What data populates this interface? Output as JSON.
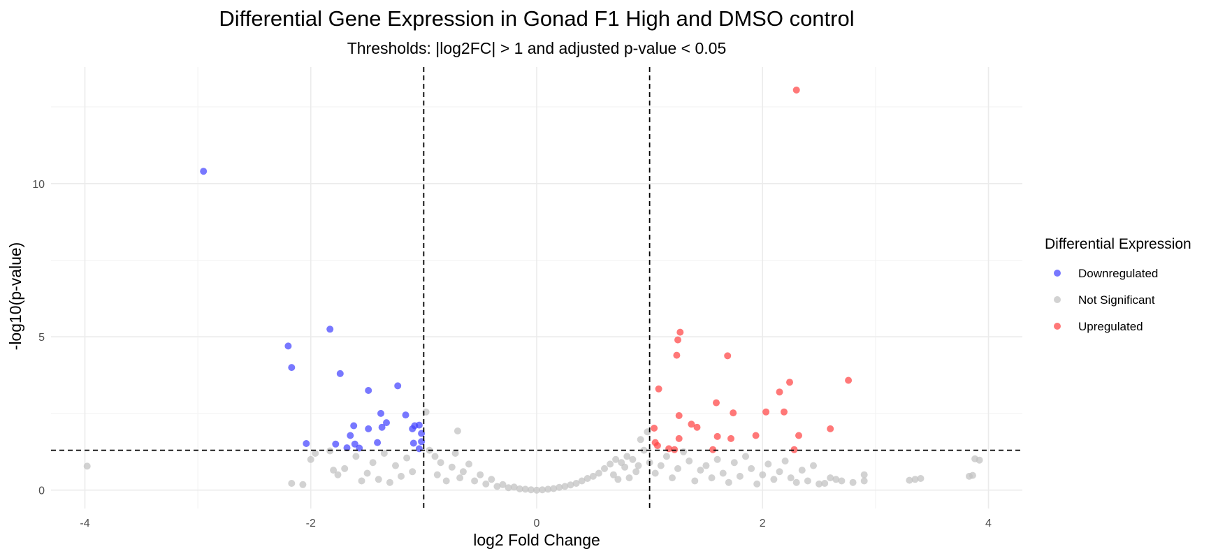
{
  "chart_data": {
    "type": "scatter",
    "title": "Differential Gene Expression in Gonad F1 High and DMSO control",
    "subtitle": "Thresholds: |log2FC| > 1 and adjusted p-value < 0.05",
    "xlabel": "log2 Fold Change",
    "ylabel": "-log10(p-value)",
    "xlim": [
      -4.3,
      4.3
    ],
    "ylim": [
      -0.6,
      13.8
    ],
    "x_ticks": [
      -4,
      -2,
      0,
      2,
      4
    ],
    "x_tick_labels": [
      "-4",
      "-2",
      "0",
      "2",
      "4"
    ],
    "y_ticks": [
      0,
      5,
      10
    ],
    "y_tick_labels": [
      "0",
      "5",
      "10"
    ],
    "grid": true,
    "legend_position": "right",
    "thresholds": {
      "x": [
        -1,
        1
      ],
      "y": 1.3
    },
    "legend": {
      "title": "Differential Expression",
      "items": [
        {
          "label": "Downregulated",
          "color": "#4444ff"
        },
        {
          "label": "Not Significant",
          "color": "#c0c0c0"
        },
        {
          "label": "Upregulated",
          "color": "#ff4444"
        }
      ]
    },
    "series": [
      {
        "name": "Downregulated",
        "color": "#4444ff",
        "points": [
          [
            -2.95,
            10.4
          ],
          [
            -1.83,
            5.25
          ],
          [
            -2.2,
            4.7
          ],
          [
            -2.17,
            4.0
          ],
          [
            -1.74,
            3.8
          ],
          [
            -1.49,
            3.25
          ],
          [
            -1.23,
            3.4
          ],
          [
            -1.38,
            2.5
          ],
          [
            -1.16,
            2.45
          ],
          [
            -1.33,
            2.2
          ],
          [
            -1.37,
            2.05
          ],
          [
            -1.62,
            2.1
          ],
          [
            -1.49,
            2.0
          ],
          [
            -1.08,
            2.1
          ],
          [
            -1.04,
            2.12
          ],
          [
            -1.1,
            2.0
          ],
          [
            -1.02,
            1.85
          ],
          [
            -1.65,
            1.78
          ],
          [
            -2.04,
            1.52
          ],
          [
            -1.78,
            1.5
          ],
          [
            -1.61,
            1.5
          ],
          [
            -1.57,
            1.37
          ],
          [
            -1.68,
            1.38
          ],
          [
            -1.41,
            1.55
          ],
          [
            -1.09,
            1.53
          ],
          [
            -1.02,
            1.58
          ],
          [
            -1.04,
            1.35
          ]
        ]
      },
      {
        "name": "Not Significant",
        "color": "#c0c0c0",
        "points": [
          [
            -3.98,
            0.78
          ],
          [
            -2.17,
            0.22
          ],
          [
            -2.07,
            0.18
          ],
          [
            -2.0,
            1.0
          ],
          [
            -1.96,
            1.2
          ],
          [
            -1.83,
            1.28
          ],
          [
            -1.8,
            0.65
          ],
          [
            -1.76,
            0.5
          ],
          [
            -1.7,
            0.7
          ],
          [
            -1.6,
            1.1
          ],
          [
            -1.55,
            0.3
          ],
          [
            -1.5,
            0.55
          ],
          [
            -1.45,
            0.9
          ],
          [
            -1.4,
            0.35
          ],
          [
            -1.35,
            1.2
          ],
          [
            -1.3,
            0.25
          ],
          [
            -1.25,
            0.8
          ],
          [
            -1.2,
            0.45
          ],
          [
            -1.15,
            1.05
          ],
          [
            -1.1,
            0.6
          ],
          [
            -0.98,
            2.55
          ],
          [
            -0.7,
            1.93
          ],
          [
            -0.95,
            1.3
          ],
          [
            -0.9,
            1.1
          ],
          [
            -0.88,
            0.5
          ],
          [
            -0.85,
            0.9
          ],
          [
            -0.8,
            0.3
          ],
          [
            -0.75,
            0.75
          ],
          [
            -0.72,
            1.2
          ],
          [
            -0.68,
            0.4
          ],
          [
            -0.65,
            0.6
          ],
          [
            -0.6,
            0.85
          ],
          [
            -0.55,
            0.3
          ],
          [
            -0.5,
            0.5
          ],
          [
            -0.45,
            0.2
          ],
          [
            -0.4,
            0.35
          ],
          [
            -0.35,
            0.12
          ],
          [
            -0.3,
            0.18
          ],
          [
            -0.25,
            0.08
          ],
          [
            -0.2,
            0.1
          ],
          [
            -0.15,
            0.04
          ],
          [
            -0.1,
            0.03
          ],
          [
            -0.05,
            0.01
          ],
          [
            0.0,
            0.0
          ],
          [
            0.05,
            0.01
          ],
          [
            0.1,
            0.03
          ],
          [
            0.15,
            0.05
          ],
          [
            0.2,
            0.09
          ],
          [
            0.25,
            0.12
          ],
          [
            0.3,
            0.17
          ],
          [
            0.35,
            0.22
          ],
          [
            0.4,
            0.3
          ],
          [
            0.45,
            0.38
          ],
          [
            0.5,
            0.45
          ],
          [
            0.55,
            0.55
          ],
          [
            0.6,
            0.7
          ],
          [
            0.65,
            0.85
          ],
          [
            0.7,
            1.0
          ],
          [
            0.75,
            0.9
          ],
          [
            0.8,
            1.1
          ],
          [
            0.85,
            1.0
          ],
          [
            0.9,
            0.8
          ],
          [
            0.95,
            1.3
          ],
          [
            0.98,
            1.9
          ],
          [
            0.92,
            1.65
          ],
          [
            0.88,
            0.6
          ],
          [
            0.82,
            0.4
          ],
          [
            0.78,
            0.75
          ],
          [
            0.72,
            0.35
          ],
          [
            0.68,
            0.5
          ],
          [
            1.0,
            0.9
          ],
          [
            1.05,
            0.55
          ],
          [
            1.1,
            0.8
          ],
          [
            1.15,
            1.1
          ],
          [
            1.2,
            0.4
          ],
          [
            1.25,
            0.7
          ],
          [
            1.3,
            1.25
          ],
          [
            1.35,
            0.95
          ],
          [
            1.4,
            0.3
          ],
          [
            1.45,
            0.65
          ],
          [
            1.5,
            0.8
          ],
          [
            1.55,
            0.4
          ],
          [
            1.6,
            1.0
          ],
          [
            1.65,
            0.55
          ],
          [
            1.7,
            0.25
          ],
          [
            1.75,
            0.9
          ],
          [
            1.8,
            0.45
          ],
          [
            1.85,
            1.1
          ],
          [
            1.9,
            0.7
          ],
          [
            1.95,
            0.2
          ],
          [
            2.0,
            0.5
          ],
          [
            2.05,
            0.85
          ],
          [
            2.1,
            0.35
          ],
          [
            2.15,
            0.6
          ],
          [
            2.2,
            0.95
          ],
          [
            2.25,
            0.4
          ],
          [
            2.3,
            0.25
          ],
          [
            2.35,
            0.65
          ],
          [
            2.4,
            0.3
          ],
          [
            2.45,
            0.8
          ],
          [
            2.5,
            0.2
          ],
          [
            2.55,
            0.22
          ],
          [
            2.6,
            0.4
          ],
          [
            2.65,
            0.35
          ],
          [
            2.7,
            0.3
          ],
          [
            2.8,
            0.25
          ],
          [
            2.9,
            0.5
          ],
          [
            2.9,
            0.3
          ],
          [
            3.3,
            0.32
          ],
          [
            3.35,
            0.35
          ],
          [
            3.4,
            0.38
          ],
          [
            3.83,
            0.45
          ],
          [
            3.86,
            0.48
          ],
          [
            3.88,
            1.02
          ],
          [
            3.92,
            0.98
          ]
        ]
      },
      {
        "name": "Upregulated",
        "color": "#ff4444",
        "points": [
          [
            2.3,
            13.05
          ],
          [
            1.27,
            5.15
          ],
          [
            1.25,
            4.9
          ],
          [
            1.24,
            4.4
          ],
          [
            1.69,
            4.38
          ],
          [
            2.76,
            3.58
          ],
          [
            2.24,
            3.52
          ],
          [
            1.08,
            3.3
          ],
          [
            2.15,
            3.2
          ],
          [
            1.59,
            2.85
          ],
          [
            2.03,
            2.55
          ],
          [
            2.19,
            2.55
          ],
          [
            1.74,
            2.52
          ],
          [
            1.26,
            2.43
          ],
          [
            1.37,
            2.15
          ],
          [
            1.42,
            2.05
          ],
          [
            1.04,
            2.02
          ],
          [
            2.6,
            2.0
          ],
          [
            2.32,
            1.78
          ],
          [
            1.94,
            1.78
          ],
          [
            1.6,
            1.75
          ],
          [
            1.72,
            1.68
          ],
          [
            1.26,
            1.68
          ],
          [
            1.05,
            1.55
          ],
          [
            1.07,
            1.45
          ],
          [
            1.17,
            1.35
          ],
          [
            1.22,
            1.32
          ],
          [
            1.56,
            1.32
          ],
          [
            2.28,
            1.32
          ]
        ]
      }
    ]
  }
}
